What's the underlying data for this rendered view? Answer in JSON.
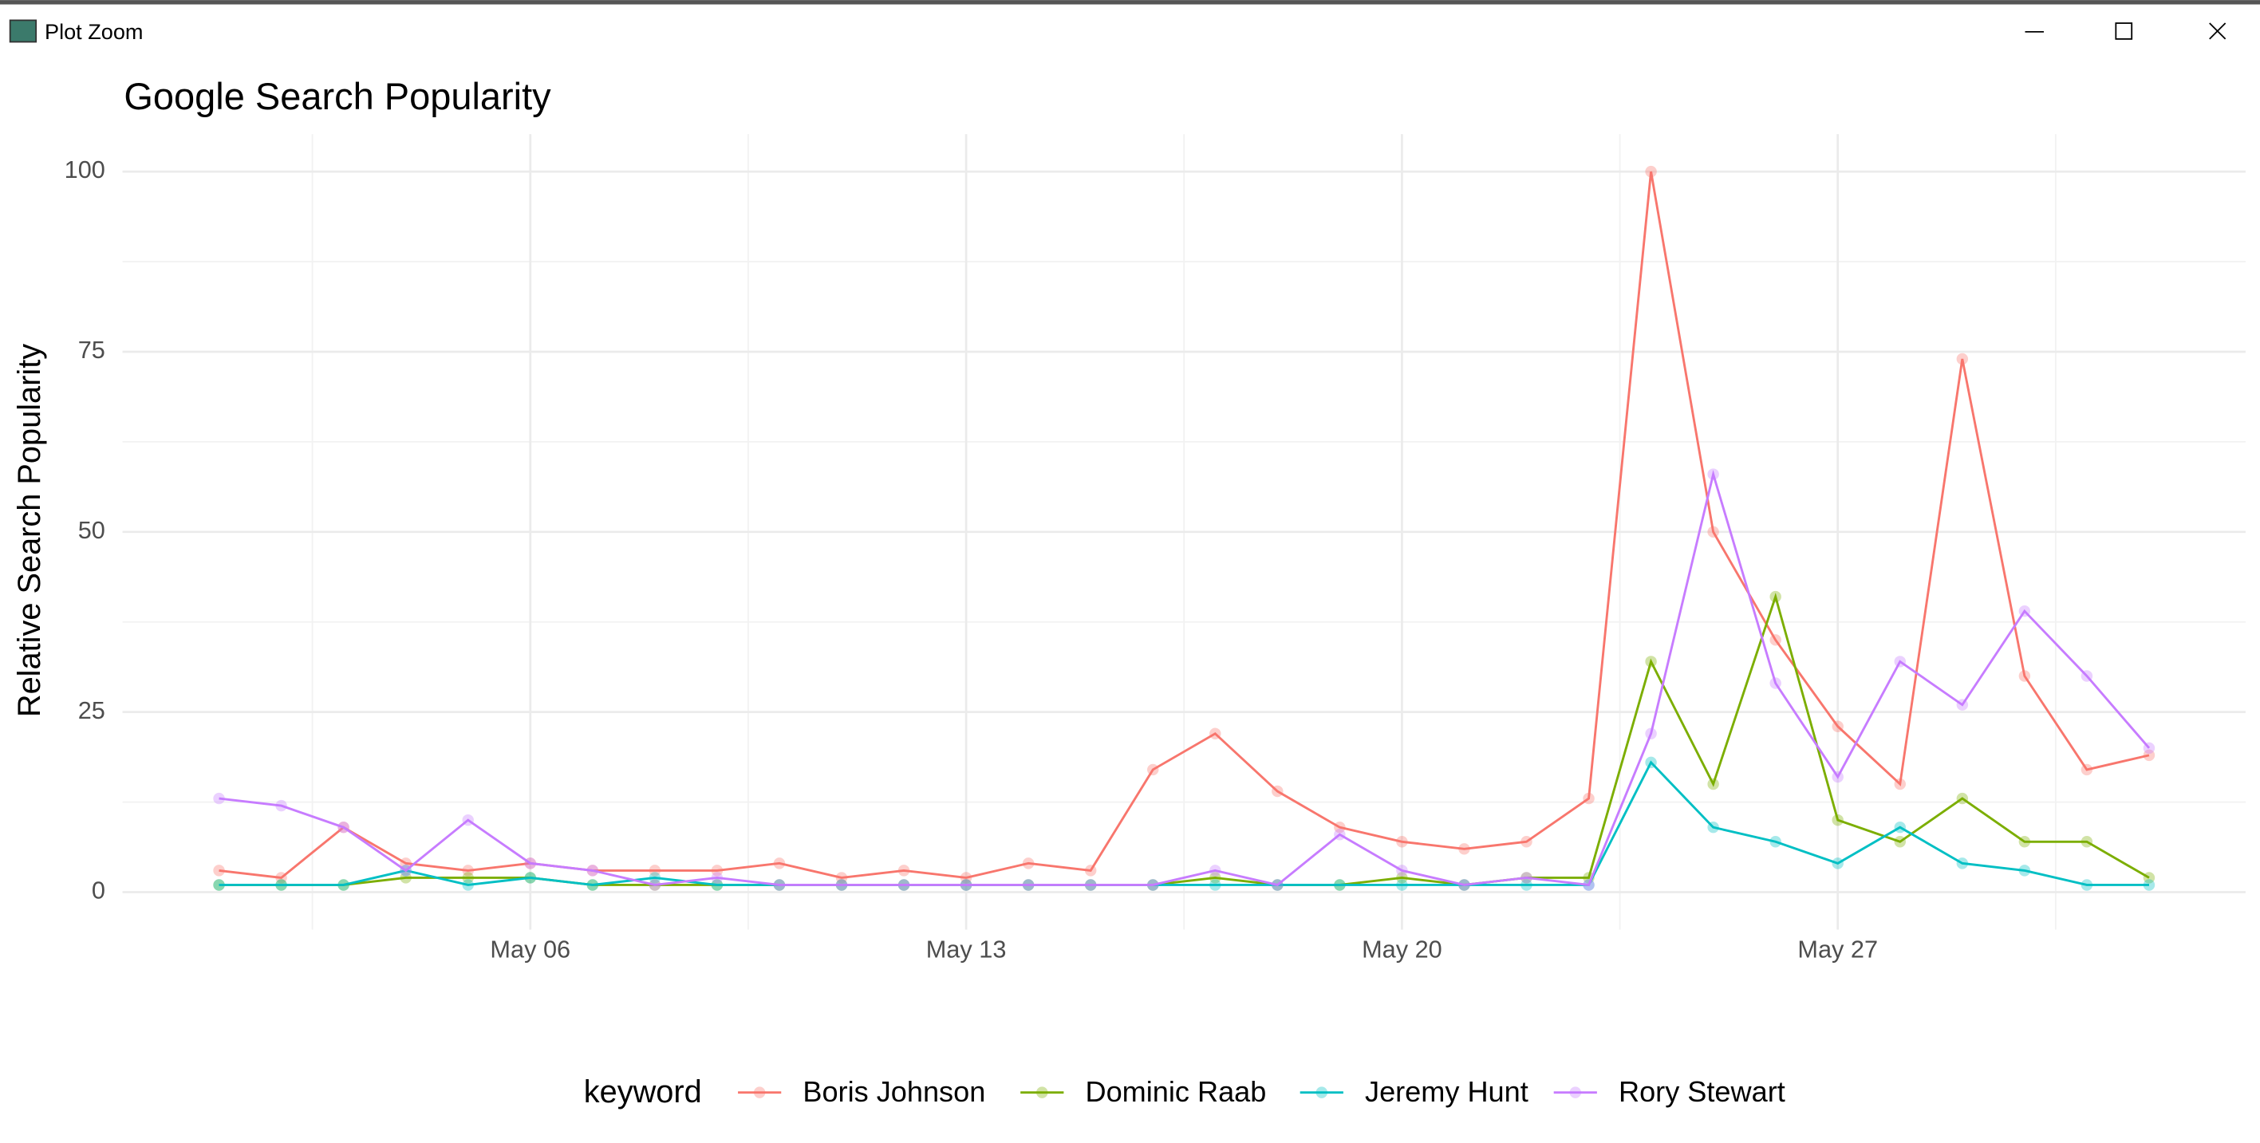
{
  "window": {
    "title": "Plot Zoom"
  },
  "chart_data": {
    "type": "line",
    "title": "Google Search Popularity",
    "y_label": "Relative Search Popularity",
    "x": [
      1,
      2,
      3,
      4,
      5,
      6,
      7,
      8,
      9,
      10,
      11,
      12,
      13,
      14,
      15,
      16,
      17,
      18,
      19,
      20,
      21,
      22,
      23,
      24,
      25,
      26,
      27,
      28,
      29,
      30,
      31,
      32
    ],
    "series": [
      {
        "name": "Boris Johnson",
        "color": "#F8766D",
        "values": [
          3,
          2,
          9,
          4,
          3,
          4,
          3,
          3,
          3,
          4,
          2,
          3,
          2,
          4,
          3,
          17,
          22,
          14,
          9,
          7,
          6,
          7,
          13,
          100,
          50,
          35,
          23,
          15,
          74,
          30,
          17,
          19
        ]
      },
      {
        "name": "Dominic Raab",
        "color": "#7CAE00",
        "values": [
          1,
          1,
          1,
          2,
          2,
          2,
          1,
          1,
          1,
          1,
          1,
          1,
          1,
          1,
          1,
          1,
          2,
          1,
          1,
          2,
          1,
          2,
          2,
          32,
          15,
          41,
          10,
          7,
          13,
          7,
          7,
          2
        ]
      },
      {
        "name": "Jeremy Hunt",
        "color": "#00BFC4",
        "values": [
          1,
          1,
          1,
          3,
          1,
          2,
          1,
          2,
          1,
          1,
          1,
          1,
          1,
          1,
          1,
          1,
          1,
          1,
          1,
          1,
          1,
          1,
          1,
          18,
          9,
          7,
          4,
          9,
          4,
          3,
          1,
          1
        ]
      },
      {
        "name": "Rory Stewart",
        "color": "#C77CFF",
        "values": [
          13,
          12,
          9,
          3,
          10,
          4,
          3,
          1,
          2,
          1,
          1,
          1,
          1,
          1,
          1,
          1,
          3,
          1,
          8,
          3,
          1,
          2,
          1,
          22,
          58,
          29,
          16,
          32,
          26,
          39,
          30,
          20
        ]
      }
    ],
    "xlim": [
      -0.55,
      33.55
    ],
    "xticks": [
      {
        "value": 6,
        "label": "May 06"
      },
      {
        "value": 13,
        "label": "May 13"
      },
      {
        "value": 20,
        "label": "May 20"
      },
      {
        "value": 27,
        "label": "May 27"
      }
    ],
    "ylim": [
      -5.2,
      105.2
    ],
    "yticks": [
      0,
      25,
      50,
      75,
      100
    ],
    "grid": true,
    "legend": {
      "title": "keyword",
      "position": "bottom"
    }
  }
}
